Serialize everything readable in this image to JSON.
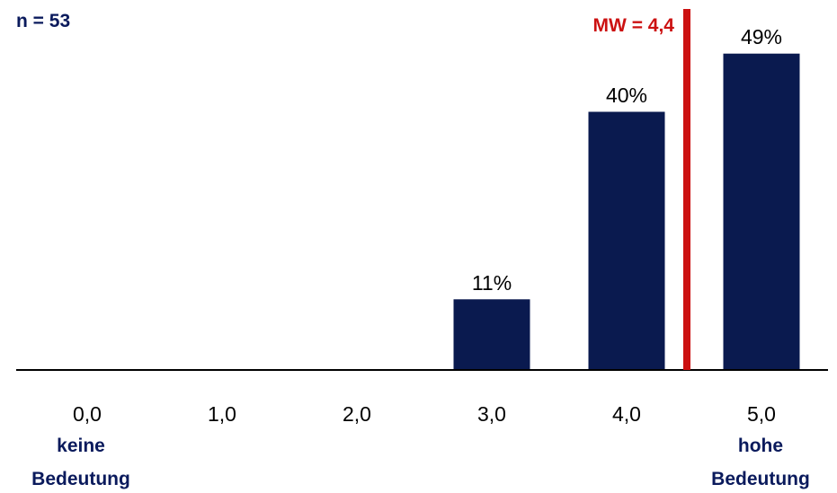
{
  "sample_size": "n = 53",
  "mean_label": "MW = 4,4",
  "colors": {
    "bar": "#0a1a4f",
    "bar_outline": "#ffffff",
    "mean_line": "#cc1111",
    "axis": "#000000",
    "label_blue": "#0a1a5c"
  },
  "chart_data": {
    "type": "bar",
    "categories": [
      "0,0",
      "1,0",
      "2,0",
      "3,0",
      "4,0",
      "5,0"
    ],
    "values": [
      0,
      0,
      0,
      11,
      40,
      49
    ],
    "data_labels": [
      "",
      "",
      "",
      "11%",
      "40%",
      "49%"
    ],
    "mean": 4.4,
    "ylim": [
      0,
      50
    ],
    "grid": false,
    "title": "",
    "xlabel": "",
    "ylabel": ""
  },
  "axis_end_labels": {
    "low": [
      "keine",
      "Bedeutung"
    ],
    "high": [
      "hohe",
      "Bedeutung"
    ]
  }
}
